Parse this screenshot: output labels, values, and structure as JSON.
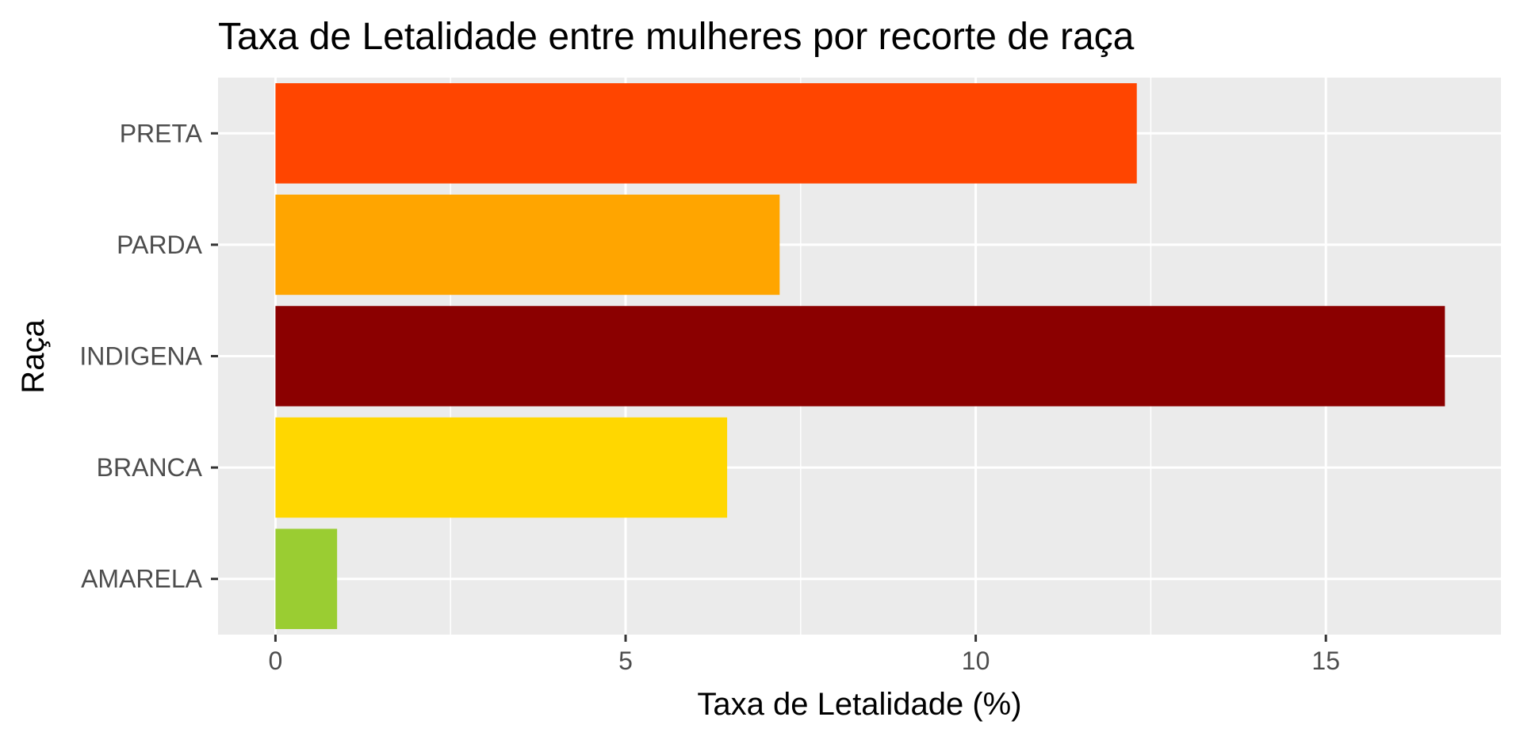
{
  "chart_data": {
    "type": "bar",
    "orientation": "horizontal",
    "title": "Taxa de Letalidade entre mulheres por recorte de raça",
    "xlabel": "Taxa de Letalidade (%)",
    "ylabel": "Raça",
    "categories": [
      "PRETA",
      "PARDA",
      "INDIGENA",
      "BRANCA",
      "AMARELA"
    ],
    "values": [
      12.3,
      7.2,
      16.7,
      6.45,
      0.88
    ],
    "colors": [
      "#FF4500",
      "#FFA500",
      "#8B0000",
      "#FFD700",
      "#9ACD32"
    ],
    "xlim": [
      -0.82,
      17.5
    ],
    "xticks": [
      0,
      5,
      10,
      15
    ],
    "xtick_labels": [
      "0",
      "5",
      "10",
      "15"
    ],
    "grid": true,
    "panel_background": "#EBEBEB",
    "grid_color": "#FFFFFF"
  }
}
